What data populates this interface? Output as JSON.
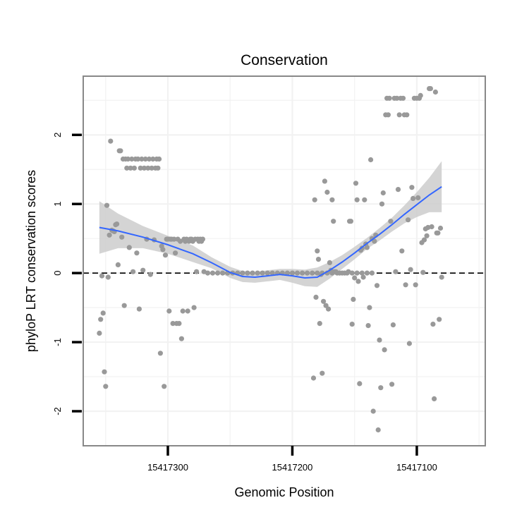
{
  "chart_data": {
    "type": "scatter",
    "title": "Conservation",
    "xlabel": "Genomic Position",
    "ylabel": "phyloP LRT conservation scores",
    "x_reversed": true,
    "xlim": [
      15417368,
      15417045
    ],
    "ylim": [
      -2.5,
      2.85
    ],
    "x_ticks": [
      15417300,
      15417200,
      15417100
    ],
    "x_tick_labels": [
      "15417300",
      "15417200",
      "15417100"
    ],
    "y_ticks": [
      -2,
      -1,
      0,
      1,
      2
    ],
    "y_tick_labels": [
      "-2",
      "-1",
      "0",
      "1",
      "2"
    ],
    "grid": true,
    "reference_line": {
      "y": 0,
      "style": "dashed",
      "color": "#000000"
    },
    "colors": {
      "points": "#999999",
      "smooth_line": "#3366ff",
      "ribbon": "#cccccc",
      "panel_border": "#888888",
      "grid": "#f2f2f2"
    },
    "points": [
      [
        15417355,
        -0.87
      ],
      [
        15417354,
        -0.67
      ],
      [
        15417353,
        -0.04
      ],
      [
        15417352,
        -0.58
      ],
      [
        15417351,
        -1.43
      ],
      [
        15417350,
        -1.64
      ],
      [
        15417349,
        0.98
      ],
      [
        15417348,
        -0.06
      ],
      [
        15417347,
        0.55
      ],
      [
        15417346,
        1.91
      ],
      [
        15417345,
        0.62
      ],
      [
        15417344,
        0.61
      ],
      [
        15417343,
        0.6
      ],
      [
        15417342,
        0.7
      ],
      [
        15417341,
        0.71
      ],
      [
        15417340,
        0.12
      ],
      [
        15417339,
        1.77
      ],
      [
        15417338,
        1.77
      ],
      [
        15417337,
        0.52
      ],
      [
        15417336,
        1.65
      ],
      [
        15417335,
        -0.47
      ],
      [
        15417334,
        1.65
      ],
      [
        15417333,
        1.52
      ],
      [
        15417332,
        1.65
      ],
      [
        15417331,
        0.37
      ],
      [
        15417330,
        1.52
      ],
      [
        15417329,
        1.65
      ],
      [
        15417328,
        0.02
      ],
      [
        15417327,
        1.52
      ],
      [
        15417326,
        1.65
      ],
      [
        15417325,
        0.29
      ],
      [
        15417324,
        1.65
      ],
      [
        15417323,
        -0.52
      ],
      [
        15417322,
        1.52
      ],
      [
        15417321,
        1.65
      ],
      [
        15417320,
        0.04
      ],
      [
        15417319,
        1.52
      ],
      [
        15417318,
        1.65
      ],
      [
        15417317,
        0.49
      ],
      [
        15417316,
        1.52
      ],
      [
        15417315,
        1.65
      ],
      [
        15417314,
        -0.02
      ],
      [
        15417313,
        1.52
      ],
      [
        15417312,
        1.65
      ],
      [
        15417311,
        0.48
      ],
      [
        15417310,
        1.52
      ],
      [
        15417309,
        1.65
      ],
      [
        15417308,
        1.52
      ],
      [
        15417307,
        1.65
      ],
      [
        15417306,
        -1.16
      ],
      [
        15417305,
        0.39
      ],
      [
        15417304,
        0.34
      ],
      [
        15417303,
        -1.64
      ],
      [
        15417302,
        0.26
      ],
      [
        15417301,
        0.49
      ],
      [
        15417300,
        0.49
      ],
      [
        15417299,
        -0.55
      ],
      [
        15417298,
        0.49
      ],
      [
        15417297,
        0.49
      ],
      [
        15417296,
        -0.73
      ],
      [
        15417295,
        0.49
      ],
      [
        15417294,
        0.29
      ],
      [
        15417293,
        -0.73
      ],
      [
        15417292,
        0.49
      ],
      [
        15417291,
        -0.73
      ],
      [
        15417290,
        0.46
      ],
      [
        15417289,
        -0.95
      ],
      [
        15417288,
        -0.55
      ],
      [
        15417287,
        0.49
      ],
      [
        15417286,
        0.46
      ],
      [
        15417285,
        0.49
      ],
      [
        15417284,
        -0.55
      ],
      [
        15417283,
        0.46
      ],
      [
        15417282,
        0.49
      ],
      [
        15417281,
        0.49
      ],
      [
        15417280,
        0.46
      ],
      [
        15417279,
        -0.5
      ],
      [
        15417278,
        0.49
      ],
      [
        15417277,
        0.02
      ],
      [
        15417276,
        0.49
      ],
      [
        15417275,
        0.46
      ],
      [
        15417274,
        0.49
      ],
      [
        15417273,
        0.46
      ],
      [
        15417272,
        0.49
      ],
      [
        15417271,
        0.02
      ],
      [
        15417268,
        0.0
      ],
      [
        15417264,
        0.0
      ],
      [
        15417260,
        0.0
      ],
      [
        15417256,
        0.0
      ],
      [
        15417252,
        0.0
      ],
      [
        15417248,
        0.0
      ],
      [
        15417244,
        0.0
      ],
      [
        15417240,
        0.0
      ],
      [
        15417236,
        0.0
      ],
      [
        15417232,
        0.0
      ],
      [
        15417228,
        0.0
      ],
      [
        15417224,
        0.0
      ],
      [
        15417220,
        0.0
      ],
      [
        15417216,
        0.0
      ],
      [
        15417212,
        0.0
      ],
      [
        15417208,
        0.0
      ],
      [
        15417204,
        0.0
      ],
      [
        15417200,
        0.0
      ],
      [
        15417196,
        0.0
      ],
      [
        15417192,
        0.0
      ],
      [
        15417188,
        0.0
      ],
      [
        15417184,
        0.0
      ],
      [
        15417180,
        0.0
      ],
      [
        15417176,
        0.0
      ],
      [
        15417172,
        0.0
      ],
      [
        15417168,
        0.0
      ],
      [
        15417164,
        0.0
      ],
      [
        15417160,
        0.0
      ],
      [
        15417156,
        0.0
      ],
      [
        15417152,
        0.0
      ],
      [
        15417148,
        0.0
      ],
      [
        15417144,
        0.0
      ],
      [
        15417140,
        0.0
      ],
      [
        15417136,
        0.0
      ],
      [
        15417183,
        -1.52
      ],
      [
        15417182,
        1.06
      ],
      [
        15417181,
        -0.35
      ],
      [
        15417180,
        0.32
      ],
      [
        15417179,
        0.2
      ],
      [
        15417178,
        -0.73
      ],
      [
        15417177,
        -0.02
      ],
      [
        15417176,
        -1.45
      ],
      [
        15417175,
        -0.41
      ],
      [
        15417174,
        1.33
      ],
      [
        15417173,
        -0.47
      ],
      [
        15417172,
        1.17
      ],
      [
        15417171,
        -0.52
      ],
      [
        15417170,
        0.15
      ],
      [
        15417169,
        0.04
      ],
      [
        15417168,
        1.06
      ],
      [
        15417167,
        0.75
      ],
      [
        15417166,
        0.02
      ],
      [
        15417165,
        0.02
      ],
      [
        15417162,
        0.0
      ],
      [
        15417158,
        0.0
      ],
      [
        15417155,
        0.02
      ],
      [
        15417154,
        0.75
      ],
      [
        15417153,
        0.75
      ],
      [
        15417152,
        -0.74
      ],
      [
        15417151,
        -0.38
      ],
      [
        15417150,
        -0.07
      ],
      [
        15417149,
        1.3
      ],
      [
        15417148,
        1.06
      ],
      [
        15417147,
        -0.12
      ],
      [
        15417146,
        -1.6
      ],
      [
        15417145,
        0.33
      ],
      [
        15417144,
        0.36
      ],
      [
        15417143,
        -0.06
      ],
      [
        15417142,
        1.06
      ],
      [
        15417141,
        0.42
      ],
      [
        15417140,
        0.37
      ],
      [
        15417139,
        -0.76
      ],
      [
        15417138,
        -0.5
      ],
      [
        15417137,
        1.64
      ],
      [
        15417136,
        0.5
      ],
      [
        15417135,
        -2.0
      ],
      [
        15417134,
        0.46
      ],
      [
        15417133,
        0.55
      ],
      [
        15417132,
        -0.18
      ],
      [
        15417131,
        -2.27
      ],
      [
        15417130,
        -0.97
      ],
      [
        15417129,
        -1.66
      ],
      [
        15417128,
        1.0
      ],
      [
        15417127,
        1.16
      ],
      [
        15417126,
        -1.11
      ],
      [
        15417125,
        2.29
      ],
      [
        15417124,
        2.53
      ],
      [
        15417123,
        2.29
      ],
      [
        15417122,
        2.53
      ],
      [
        15417121,
        0.75
      ],
      [
        15417120,
        -1.61
      ],
      [
        15417119,
        -0.75
      ],
      [
        15417118,
        2.53
      ],
      [
        15417117,
        0.02
      ],
      [
        15417116,
        2.53
      ],
      [
        15417115,
        1.21
      ],
      [
        15417114,
        2.29
      ],
      [
        15417113,
        2.53
      ],
      [
        15417112,
        0.32
      ],
      [
        15417111,
        2.53
      ],
      [
        15417110,
        2.29
      ],
      [
        15417109,
        -0.17
      ],
      [
        15417108,
        2.29
      ],
      [
        15417107,
        0.77
      ],
      [
        15417106,
        -1.02
      ],
      [
        15417105,
        0.05
      ],
      [
        15417104,
        1.24
      ],
      [
        15417103,
        1.08
      ],
      [
        15417102,
        2.53
      ],
      [
        15417101,
        -0.17
      ],
      [
        15417100,
        2.53
      ],
      [
        15417099,
        1.09
      ],
      [
        15417098,
        2.53
      ],
      [
        15417097,
        2.57
      ],
      [
        15417096,
        0.44
      ],
      [
        15417095,
        0.01
      ],
      [
        15417094,
        0.48
      ],
      [
        15417093,
        0.64
      ],
      [
        15417092,
        0.54
      ],
      [
        15417091,
        0.66
      ],
      [
        15417090,
        2.67
      ],
      [
        15417089,
        2.67
      ],
      [
        15417088,
        0.67
      ],
      [
        15417087,
        -0.74
      ],
      [
        15417086,
        -1.82
      ],
      [
        15417085,
        2.62
      ],
      [
        15417084,
        0.58
      ],
      [
        15417083,
        0.58
      ],
      [
        15417082,
        -0.67
      ],
      [
        15417081,
        0.65
      ],
      [
        15417080,
        -0.06
      ]
    ],
    "smooth": {
      "x": [
        15417355,
        15417340,
        15417320,
        15417300,
        15417280,
        15417265,
        15417250,
        15417240,
        15417230,
        15417220,
        15417210,
        15417200,
        15417190,
        15417180,
        15417170,
        15417160,
        15417150,
        15417140,
        15417130,
        15417120,
        15417110,
        15417100,
        15417090,
        15417080
      ],
      "y": [
        0.66,
        0.61,
        0.52,
        0.41,
        0.28,
        0.15,
        0.01,
        -0.05,
        -0.06,
        -0.04,
        -0.02,
        -0.04,
        -0.07,
        -0.06,
        0.04,
        0.16,
        0.29,
        0.43,
        0.56,
        0.7,
        0.85,
        0.99,
        1.13,
        1.25
      ],
      "ci_upper": [
        1.04,
        0.86,
        0.68,
        0.54,
        0.4,
        0.23,
        0.09,
        0.03,
        0.02,
        0.04,
        0.06,
        0.06,
        0.05,
        0.08,
        0.16,
        0.26,
        0.38,
        0.51,
        0.65,
        0.8,
        0.98,
        1.17,
        1.38,
        1.62
      ],
      "ci_lower": [
        0.28,
        0.36,
        0.36,
        0.28,
        0.16,
        0.07,
        -0.07,
        -0.13,
        -0.14,
        -0.12,
        -0.1,
        -0.14,
        -0.19,
        -0.2,
        -0.08,
        0.06,
        0.2,
        0.35,
        0.47,
        0.6,
        0.72,
        0.81,
        0.88,
        0.88
      ]
    }
  }
}
